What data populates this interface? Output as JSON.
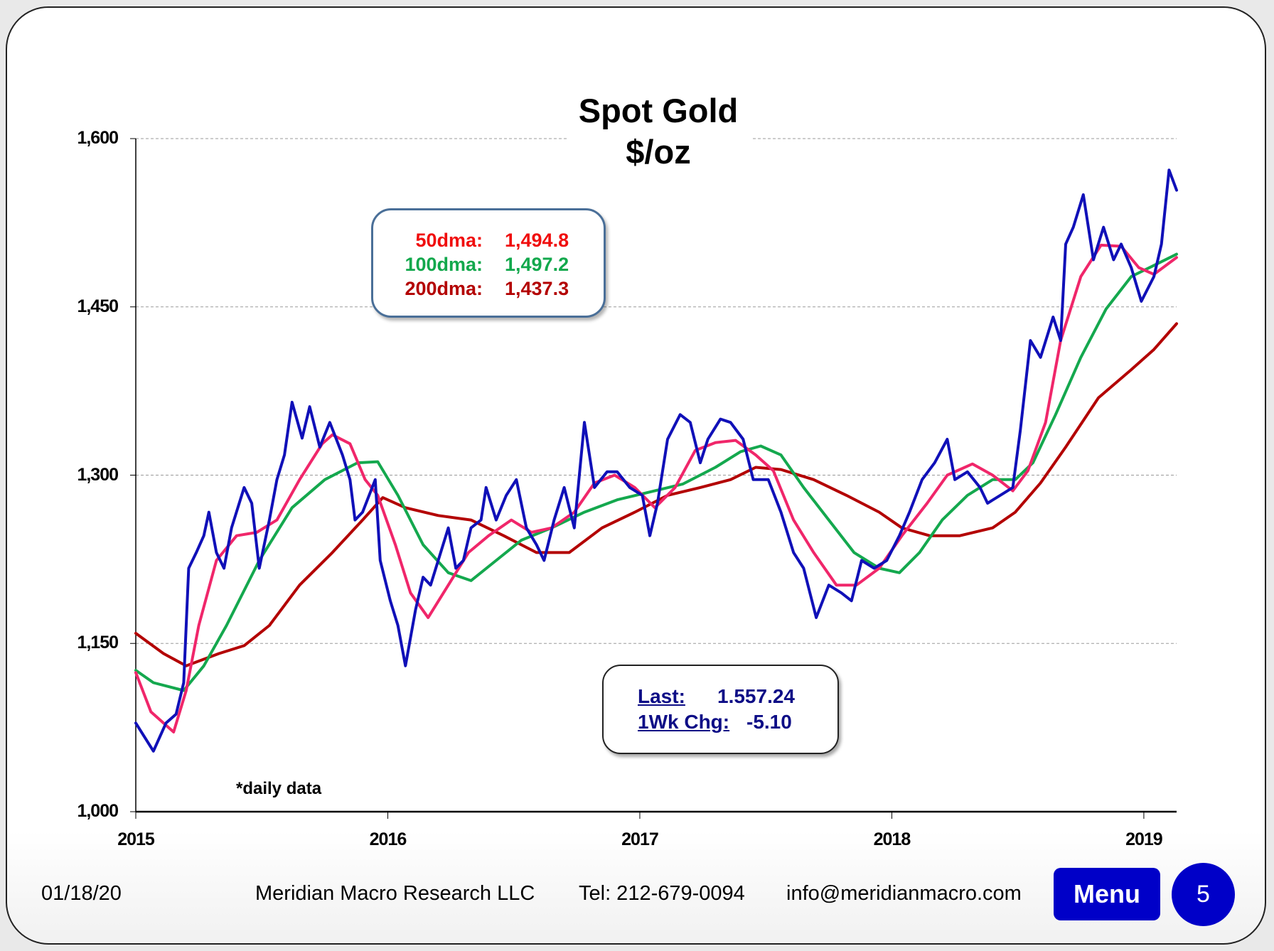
{
  "chart_data": {
    "type": "line",
    "title": "Spot Gold",
    "subtitle": "$/oz",
    "xlabel": "",
    "ylabel": "",
    "ylim": [
      1000,
      1600
    ],
    "xlim": [
      2015,
      2019.13
    ],
    "yticks": [
      "1,000",
      "1,150",
      "1,300",
      "1,450",
      "1,600"
    ],
    "ytick_values": [
      1000,
      1150,
      1300,
      1450,
      1600
    ],
    "xticks": [
      "2015",
      "2016",
      "2017",
      "2018",
      "2019"
    ],
    "xtick_values": [
      2015,
      2016,
      2017,
      2018,
      2019
    ],
    "grid": "horizontal-dashed",
    "annotation": "*daily data",
    "series": [
      {
        "name": "Spot Gold",
        "color": "#1010b8",
        "width": 4,
        "points": [
          [
            2015.0,
            1079
          ],
          [
            2015.07,
            1054
          ],
          [
            2015.12,
            1079
          ],
          [
            2015.16,
            1087
          ],
          [
            2015.19,
            1115
          ],
          [
            2015.21,
            1217
          ],
          [
            2015.24,
            1231
          ],
          [
            2015.27,
            1246
          ],
          [
            2015.29,
            1267
          ],
          [
            2015.32,
            1231
          ],
          [
            2015.35,
            1217
          ],
          [
            2015.38,
            1253
          ],
          [
            2015.43,
            1289
          ],
          [
            2015.46,
            1275
          ],
          [
            2015.49,
            1217
          ],
          [
            2015.53,
            1260
          ],
          [
            2015.56,
            1296
          ],
          [
            2015.59,
            1318
          ],
          [
            2015.62,
            1365
          ],
          [
            2015.66,
            1333
          ],
          [
            2015.69,
            1361
          ],
          [
            2015.73,
            1325
          ],
          [
            2015.77,
            1347
          ],
          [
            2015.82,
            1318
          ],
          [
            2015.85,
            1296
          ],
          [
            2015.87,
            1260
          ],
          [
            2015.9,
            1267
          ],
          [
            2015.95,
            1296
          ],
          [
            2015.97,
            1224
          ],
          [
            2016.01,
            1188
          ],
          [
            2016.04,
            1166
          ],
          [
            2016.07,
            1130
          ],
          [
            2016.11,
            1180
          ],
          [
            2016.14,
            1209
          ],
          [
            2016.17,
            1202
          ],
          [
            2016.2,
            1224
          ],
          [
            2016.24,
            1253
          ],
          [
            2016.27,
            1217
          ],
          [
            2016.3,
            1224
          ],
          [
            2016.33,
            1253
          ],
          [
            2016.37,
            1260
          ],
          [
            2016.39,
            1289
          ],
          [
            2016.43,
            1260
          ],
          [
            2016.47,
            1282
          ],
          [
            2016.51,
            1296
          ],
          [
            2016.55,
            1253
          ],
          [
            2016.59,
            1238
          ],
          [
            2016.62,
            1224
          ],
          [
            2016.66,
            1260
          ],
          [
            2016.7,
            1289
          ],
          [
            2016.74,
            1253
          ],
          [
            2016.78,
            1347
          ],
          [
            2016.82,
            1289
          ],
          [
            2016.87,
            1303
          ],
          [
            2016.91,
            1303
          ],
          [
            2016.96,
            1289
          ],
          [
            2017.01,
            1282
          ],
          [
            2017.04,
            1246
          ],
          [
            2017.07,
            1275
          ],
          [
            2017.11,
            1332
          ],
          [
            2017.16,
            1354
          ],
          [
            2017.2,
            1347
          ],
          [
            2017.24,
            1311
          ],
          [
            2017.27,
            1332
          ],
          [
            2017.32,
            1350
          ],
          [
            2017.36,
            1347
          ],
          [
            2017.41,
            1332
          ],
          [
            2017.45,
            1296
          ],
          [
            2017.51,
            1296
          ],
          [
            2017.56,
            1267
          ],
          [
            2017.61,
            1231
          ],
          [
            2017.65,
            1217
          ],
          [
            2017.7,
            1173
          ],
          [
            2017.75,
            1202
          ],
          [
            2017.8,
            1195
          ],
          [
            2017.84,
            1188
          ],
          [
            2017.88,
            1224
          ],
          [
            2017.93,
            1217
          ],
          [
            2017.98,
            1224
          ],
          [
            2018.03,
            1246
          ],
          [
            2018.07,
            1267
          ],
          [
            2018.12,
            1296
          ],
          [
            2018.17,
            1311
          ],
          [
            2018.22,
            1332
          ],
          [
            2018.25,
            1296
          ],
          [
            2018.3,
            1303
          ],
          [
            2018.35,
            1289
          ],
          [
            2018.38,
            1275
          ],
          [
            2018.43,
            1282
          ],
          [
            2018.48,
            1289
          ],
          [
            2018.51,
            1340
          ],
          [
            2018.55,
            1420
          ],
          [
            2018.59,
            1405
          ],
          [
            2018.64,
            1441
          ],
          [
            2018.67,
            1420
          ],
          [
            2018.69,
            1506
          ],
          [
            2018.72,
            1521
          ],
          [
            2018.76,
            1550
          ],
          [
            2018.8,
            1492
          ],
          [
            2018.84,
            1521
          ],
          [
            2018.88,
            1492
          ],
          [
            2018.91,
            1506
          ],
          [
            2018.95,
            1485
          ],
          [
            2018.99,
            1455
          ],
          [
            2019.04,
            1477
          ],
          [
            2019.07,
            1506
          ],
          [
            2019.1,
            1572
          ],
          [
            2019.13,
            1554
          ]
        ]
      },
      {
        "name": "50dma",
        "color": "#f0266a",
        "width": 4,
        "points": [
          [
            2015.0,
            1124
          ],
          [
            2015.06,
            1089
          ],
          [
            2015.15,
            1071
          ],
          [
            2015.2,
            1108
          ],
          [
            2015.25,
            1166
          ],
          [
            2015.32,
            1224
          ],
          [
            2015.4,
            1246
          ],
          [
            2015.48,
            1249
          ],
          [
            2015.56,
            1260
          ],
          [
            2015.65,
            1296
          ],
          [
            2015.74,
            1328
          ],
          [
            2015.78,
            1336
          ],
          [
            2015.85,
            1328
          ],
          [
            2015.91,
            1296
          ],
          [
            2015.96,
            1282
          ],
          [
            2016.03,
            1238
          ],
          [
            2016.09,
            1195
          ],
          [
            2016.16,
            1173
          ],
          [
            2016.24,
            1202
          ],
          [
            2016.32,
            1231
          ],
          [
            2016.4,
            1246
          ],
          [
            2016.49,
            1260
          ],
          [
            2016.57,
            1249
          ],
          [
            2016.65,
            1253
          ],
          [
            2016.74,
            1267
          ],
          [
            2016.82,
            1293
          ],
          [
            2016.9,
            1300
          ],
          [
            2016.98,
            1289
          ],
          [
            2017.06,
            1271
          ],
          [
            2017.14,
            1289
          ],
          [
            2017.22,
            1322
          ],
          [
            2017.3,
            1329
          ],
          [
            2017.38,
            1331
          ],
          [
            2017.46,
            1318
          ],
          [
            2017.53,
            1304
          ],
          [
            2017.61,
            1260
          ],
          [
            2017.69,
            1231
          ],
          [
            2017.78,
            1202
          ],
          [
            2017.86,
            1202
          ],
          [
            2017.95,
            1217
          ],
          [
            2018.04,
            1246
          ],
          [
            2018.14,
            1275
          ],
          [
            2018.22,
            1300
          ],
          [
            2018.32,
            1310
          ],
          [
            2018.4,
            1300
          ],
          [
            2018.48,
            1286
          ],
          [
            2018.54,
            1304
          ],
          [
            2018.61,
            1347
          ],
          [
            2018.67,
            1420
          ],
          [
            2018.75,
            1477
          ],
          [
            2018.83,
            1505
          ],
          [
            2018.91,
            1504
          ],
          [
            2018.98,
            1485
          ],
          [
            2019.04,
            1479
          ],
          [
            2019.13,
            1494
          ]
        ]
      },
      {
        "name": "100dma",
        "color": "#14a84e",
        "width": 4,
        "points": [
          [
            2015.0,
            1126
          ],
          [
            2015.07,
            1115
          ],
          [
            2015.19,
            1108
          ],
          [
            2015.27,
            1130
          ],
          [
            2015.36,
            1166
          ],
          [
            2015.49,
            1224
          ],
          [
            2015.62,
            1271
          ],
          [
            2015.75,
            1296
          ],
          [
            2015.88,
            1311
          ],
          [
            2015.96,
            1312
          ],
          [
            2016.04,
            1282
          ],
          [
            2016.14,
            1238
          ],
          [
            2016.24,
            1213
          ],
          [
            2016.33,
            1206
          ],
          [
            2016.43,
            1224
          ],
          [
            2016.53,
            1242
          ],
          [
            2016.65,
            1253
          ],
          [
            2016.78,
            1267
          ],
          [
            2016.91,
            1278
          ],
          [
            2017.04,
            1285
          ],
          [
            2017.17,
            1292
          ],
          [
            2017.3,
            1307
          ],
          [
            2017.4,
            1321
          ],
          [
            2017.48,
            1326
          ],
          [
            2017.56,
            1318
          ],
          [
            2017.65,
            1289
          ],
          [
            2017.75,
            1260
          ],
          [
            2017.85,
            1231
          ],
          [
            2017.95,
            1217
          ],
          [
            2018.03,
            1213
          ],
          [
            2018.11,
            1231
          ],
          [
            2018.2,
            1260
          ],
          [
            2018.3,
            1282
          ],
          [
            2018.4,
            1296
          ],
          [
            2018.49,
            1296
          ],
          [
            2018.56,
            1311
          ],
          [
            2018.65,
            1354
          ],
          [
            2018.75,
            1405
          ],
          [
            2018.85,
            1448
          ],
          [
            2018.95,
            1477
          ],
          [
            2019.04,
            1487
          ],
          [
            2019.13,
            1497
          ]
        ]
      },
      {
        "name": "200dma",
        "color": "#b30000",
        "width": 4,
        "points": [
          [
            2015.0,
            1159
          ],
          [
            2015.11,
            1141
          ],
          [
            2015.2,
            1130
          ],
          [
            2015.33,
            1141
          ],
          [
            2015.43,
            1148
          ],
          [
            2015.53,
            1166
          ],
          [
            2015.65,
            1202
          ],
          [
            2015.78,
            1231
          ],
          [
            2015.9,
            1260
          ],
          [
            2015.98,
            1280
          ],
          [
            2016.07,
            1271
          ],
          [
            2016.2,
            1264
          ],
          [
            2016.33,
            1260
          ],
          [
            2016.46,
            1246
          ],
          [
            2016.59,
            1231
          ],
          [
            2016.72,
            1231
          ],
          [
            2016.85,
            1253
          ],
          [
            2016.98,
            1267
          ],
          [
            2017.11,
            1282
          ],
          [
            2017.24,
            1289
          ],
          [
            2017.36,
            1296
          ],
          [
            2017.46,
            1307
          ],
          [
            2017.56,
            1305
          ],
          [
            2017.69,
            1296
          ],
          [
            2017.82,
            1282
          ],
          [
            2017.95,
            1267
          ],
          [
            2018.04,
            1253
          ],
          [
            2018.15,
            1246
          ],
          [
            2018.27,
            1246
          ],
          [
            2018.4,
            1253
          ],
          [
            2018.49,
            1267
          ],
          [
            2018.59,
            1293
          ],
          [
            2018.69,
            1325
          ],
          [
            2018.82,
            1369
          ],
          [
            2018.95,
            1394
          ],
          [
            2019.04,
            1412
          ],
          [
            2019.13,
            1435
          ]
        ]
      }
    ]
  },
  "ma_box": [
    {
      "label": "50dma:",
      "value": "1,494.8",
      "color": "#f00d0d"
    },
    {
      "label": "100dma:",
      "value": "1,497.2",
      "color": "#12a84c"
    },
    {
      "label": "200dma:",
      "value": "1,437.3",
      "color": "#b30000"
    }
  ],
  "last_box": {
    "last_label": "Last:",
    "last_value": "1.557.24",
    "chg_label": "1Wk Chg:",
    "chg_value": "-5.10"
  },
  "footer": {
    "date": "01/18/20",
    "company": "Meridian Macro Research  LLC",
    "tel": "Tel: 212-679-0094",
    "email": "info@meridianmacro.com",
    "menu_label": "Menu",
    "page_number": "5"
  }
}
